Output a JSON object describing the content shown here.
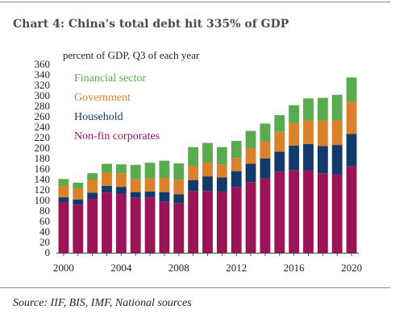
{
  "title": "Chart 4:  China's total debt hit 335% of GDP",
  "source": "Source: IIF, BIS, IMF, National sources",
  "chart_data": {
    "type": "bar",
    "stacked": true,
    "ylabel": "percent of GDP, Q3  of each year",
    "ylim": [
      0,
      360
    ],
    "yticks": [
      0,
      20,
      40,
      60,
      80,
      100,
      120,
      140,
      160,
      180,
      200,
      220,
      240,
      260,
      280,
      300,
      320,
      340,
      360
    ],
    "xticks": [
      "2000",
      "2004",
      "2008",
      "2012",
      "2016",
      "2020"
    ],
    "grid": false,
    "legend_position": "top-left, inside plot",
    "categories": [
      "2000",
      "2001",
      "2002",
      "2003",
      "2004",
      "2005",
      "2006",
      "2007",
      "2008",
      "2009",
      "2010",
      "2011",
      "2012",
      "2013",
      "2014",
      "2015",
      "2016",
      "2017",
      "2018",
      "2019",
      "2020"
    ],
    "series": [
      {
        "name": "Non-fin corporates",
        "color": "#9b1458",
        "values": [
          97,
          92,
          103,
          115,
          113,
          105,
          106,
          98,
          95,
          118,
          118,
          116,
          126,
          135,
          142,
          155,
          158,
          157,
          152,
          150,
          165
        ]
      },
      {
        "name": "Household",
        "color": "#123a6b",
        "values": [
          9,
          10,
          12,
          13,
          13,
          11,
          11,
          18,
          17,
          21,
          28,
          28,
          30,
          35,
          38,
          38,
          47,
          51,
          52,
          56,
          62
        ]
      },
      {
        "name": "Government",
        "color": "#d9822b",
        "values": [
          22,
          21,
          25,
          25,
          26,
          25,
          25,
          27,
          27,
          27,
          27,
          25,
          25,
          30,
          33,
          38,
          43,
          45,
          48,
          47,
          62
        ]
      },
      {
        "name": "Financial sector",
        "color": "#5aaa4f",
        "values": [
          13,
          11,
          12,
          17,
          17,
          27,
          30,
          33,
          32,
          36,
          37,
          33,
          33,
          33,
          34,
          32,
          34,
          42,
          44,
          49,
          46
        ]
      }
    ]
  }
}
